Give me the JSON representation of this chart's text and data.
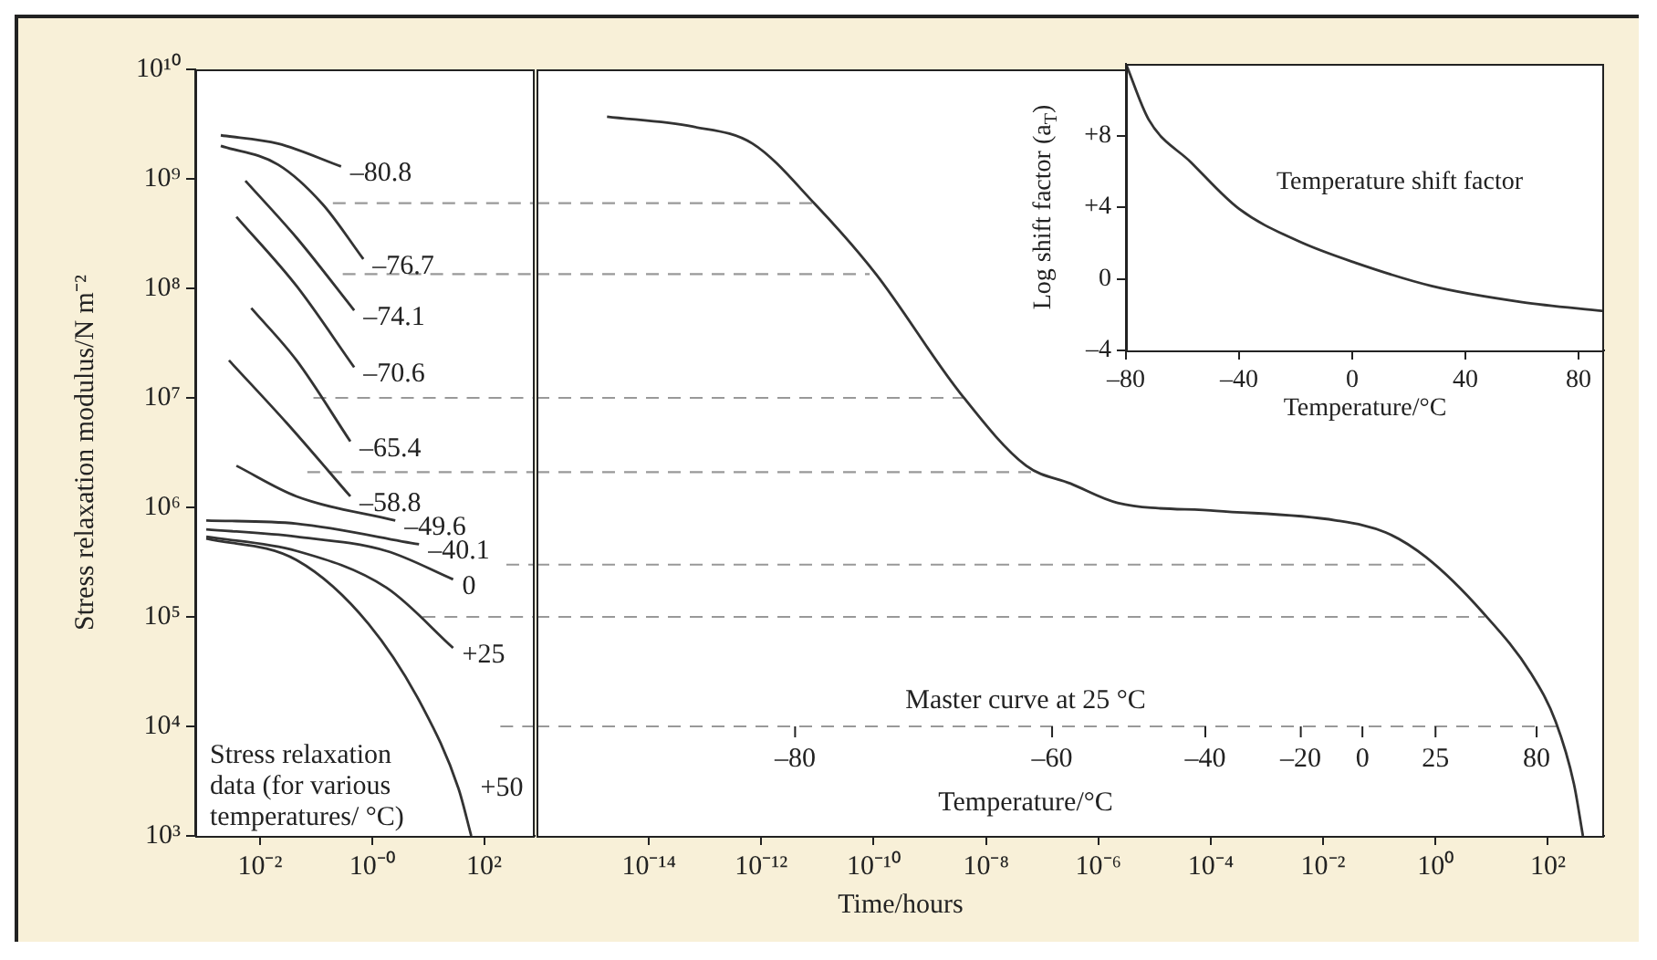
{
  "chart_data": [
    {
      "type": "line",
      "ylabel": "Stress relaxation modulus/N m⁻²",
      "log": "xy",
      "marker": "none",
      "xlim": [
        0.0007,
        800
      ],
      "ylim": [
        1000,
        10000000000
      ],
      "xticks": [
        {
          "value": 0.01,
          "label": "10⁻²"
        },
        {
          "value": 1,
          "label": "10⁻⁰"
        },
        {
          "value": 100,
          "label": "10²"
        }
      ],
      "yticks": [
        {
          "value": 1000,
          "label": "10³"
        },
        {
          "value": 10000,
          "label": "10⁴"
        },
        {
          "value": 100000,
          "label": "10⁵"
        },
        {
          "value": 1000000,
          "label": "10⁶"
        },
        {
          "value": 10000000,
          "label": "10⁷"
        },
        {
          "value": 100000000,
          "label": "10⁸"
        },
        {
          "value": 1000000000,
          "label": "10⁹"
        },
        {
          "value": 10000000000,
          "label": "10¹⁰"
        }
      ],
      "annotations": [
        "Stress relaxation data (for various temperatures/ °C)"
      ],
      "series": [
        {
          "name": "–80.8",
          "color": "#333333",
          "x": [
            0.002,
            0.021,
            0.28
          ],
          "values": [
            2500000000,
            2100000000,
            1300000000
          ]
        },
        {
          "name": "–76.7",
          "color": "#333333",
          "x": [
            0.002,
            0.021,
            0.13,
            0.7
          ],
          "values": [
            2000000000,
            1350000000,
            590000000,
            185000000
          ]
        },
        {
          "name": "–74.1",
          "color": "#333333",
          "x": [
            0.0055,
            0.045,
            0.48
          ],
          "values": [
            960000000,
            290000000,
            63000000
          ]
        },
        {
          "name": "–70.6",
          "color": "#333333",
          "x": [
            0.0038,
            0.045,
            0.48
          ],
          "values": [
            450000000,
            105000000,
            19000000
          ]
        },
        {
          "name": "–65.4",
          "color": "#333333",
          "x": [
            0.007,
            0.045,
            0.41
          ],
          "values": [
            66000000,
            22000000,
            4000000
          ]
        },
        {
          "name": "–58.8",
          "color": "#333333",
          "x": [
            0.0028,
            0.03,
            0.41
          ],
          "values": [
            22000000,
            5900000,
            1260000
          ]
        },
        {
          "name": "–49.6",
          "color": "#333333",
          "x": [
            0.0038,
            0.045,
            2.6
          ],
          "values": [
            2400000,
            1260000,
            760000
          ]
        },
        {
          "name": "–40.1",
          "color": "#333333",
          "x": [
            0.0011,
            0.045,
            6.9
          ],
          "values": [
            760000,
            710000,
            460000
          ]
        },
        {
          "name": "0",
          "color": "#333333",
          "x": [
            0.0011,
            0.045,
            1.8,
            28
          ],
          "values": [
            630000,
            540000,
            400000,
            220000
          ]
        },
        {
          "name": "+25",
          "color": "#333333",
          "x": [
            0.0011,
            0.045,
            1.8,
            28
          ],
          "values": [
            540000,
            400000,
            185000,
            52000
          ]
        },
        {
          "name": "+50",
          "color": "#333333",
          "x": [
            0.0011,
            0.045,
            0.87,
            8,
            35,
            59
          ],
          "values": [
            520000,
            330000,
            86000,
            15000,
            2700,
            1000
          ]
        },
        {
          "color": "#999999",
          "line_style": "dashed",
          "x": [
            0.2,
            800
          ],
          "values": [
            600000000,
            600000000
          ]
        },
        {
          "color": "#999999",
          "line_style": "dashed",
          "x": [
            0.3,
            800
          ],
          "values": [
            135000000,
            135000000
          ]
        },
        {
          "color": "#999999",
          "line_style": "dashed",
          "x": [
            0.09,
            800
          ],
          "values": [
            10000000,
            10000000
          ]
        },
        {
          "color": "#999999",
          "line_style": "dashed",
          "x": [
            0.07,
            800
          ],
          "values": [
            2100000,
            2100000
          ]
        },
        {
          "color": "#999999",
          "line_style": "dashed",
          "x": [
            250,
            800
          ],
          "values": [
            300000,
            300000
          ]
        },
        {
          "color": "#999999",
          "line_style": "dashed",
          "x": [
            8,
            800
          ],
          "values": [
            100000,
            100000
          ]
        },
        {
          "color": "#999999",
          "line_style": "dashed",
          "x": [
            195,
            800
          ],
          "values": [
            10000,
            10000
          ]
        }
      ]
    },
    {
      "type": "line",
      "xlabel": "Time/hours",
      "log": "xy",
      "marker": "none",
      "tick_labels": "x",
      "xlim": [
        1e-16,
        1000
      ],
      "ylim": [
        1000,
        10000000000
      ],
      "xticks": [
        {
          "value": 1e-14,
          "label": "10⁻¹⁴"
        },
        {
          "value": 1e-12,
          "label": "10⁻¹²"
        },
        {
          "value": 1e-10,
          "label": "10⁻¹⁰"
        },
        {
          "value": 1e-08,
          "label": "10⁻⁸"
        },
        {
          "value": 1e-06,
          "label": "10⁻⁶"
        },
        {
          "value": 0.0001,
          "label": "10⁻⁴"
        },
        {
          "value": 0.01,
          "label": "10⁻²"
        },
        {
          "value": 1,
          "label": "10⁰"
        },
        {
          "value": 100,
          "label": "10²"
        }
      ],
      "annotations": [
        "Master curve at 25 °C",
        "Temperature/°C",
        {
          "text": "–80",
          "x": 4e-12,
          "y": 10000
        },
        {
          "text": "–60",
          "x": 1.5e-07,
          "y": 10000
        },
        {
          "text": "–40",
          "x": 8e-05,
          "y": 10000
        },
        {
          "text": "–20",
          "x": 0.004,
          "y": 10000
        },
        {
          "text": "0",
          "x": 0.05,
          "y": 10000
        },
        {
          "text": "25",
          "x": 1,
          "y": 10000
        },
        {
          "text": "80",
          "x": 63,
          "y": 10000
        }
      ],
      "series": [
        {
          "color": "#333333",
          "x": [
            1.8e-15,
            6e-14,
            7e-13,
            9e-12,
            1.1e-10,
            3.5e-09,
            5.2e-08,
            3.2e-07,
            2.2e-06,
            0.000126,
            0.017,
            0.13,
            0.68,
            6.9,
            51,
            138,
            290,
            420
          ],
          "values": [
            3700000000,
            3000000000,
            2100000000,
            590000000,
            135000000,
            11000000,
            2400000,
            1650000,
            1100000,
            930000,
            760000,
            590000,
            350000,
            110000,
            30000,
            11000,
            3000,
            1000
          ]
        },
        {
          "color": "#999999",
          "line_style": "dashed",
          "x": [
            1e-16,
            8e-12
          ],
          "values": [
            600000000,
            600000000
          ]
        },
        {
          "color": "#999999",
          "line_style": "dashed",
          "x": [
            1e-16,
            8.5e-11
          ],
          "values": [
            135000000,
            135000000
          ]
        },
        {
          "color": "#999999",
          "line_style": "dashed",
          "x": [
            1e-16,
            4e-09
          ],
          "values": [
            10000000,
            10000000
          ]
        },
        {
          "color": "#999999",
          "line_style": "dashed",
          "x": [
            1e-16,
            7e-08
          ],
          "values": [
            2100000,
            2100000
          ]
        },
        {
          "color": "#999999",
          "line_style": "dashed",
          "x": [
            1e-16,
            0.9
          ],
          "values": [
            300000,
            300000
          ]
        },
        {
          "color": "#999999",
          "line_style": "dashed",
          "x": [
            1e-16,
            7.5
          ],
          "values": [
            100000,
            100000
          ]
        },
        {
          "color": "#999999",
          "line_style": "dashed",
          "x": [
            1e-16,
            145
          ],
          "values": [
            10000,
            10000
          ]
        }
      ]
    },
    {
      "type": "line",
      "xlabel": "Temperature/°C",
      "ylabel": "Log shift factor (a$_{T}$)",
      "marker": "none",
      "xlim": [
        -80,
        89
      ],
      "ylim": [
        -4,
        12
      ],
      "xticks": [
        {
          "value": -80,
          "label": "–80"
        },
        {
          "value": -40,
          "label": "–40"
        },
        0,
        40,
        80
      ],
      "yticks": [
        {
          "value": -4,
          "label": "–4"
        },
        0,
        {
          "value": 4,
          "label": "+4"
        },
        {
          "value": 8,
          "label": "+8"
        }
      ],
      "annotations": [
        "Temperature shift factor"
      ],
      "series": [
        {
          "color": "#333333",
          "x": [
            -80,
            -72,
            -57,
            -40,
            -19,
            1,
            28,
            60,
            89
          ],
          "values": [
            12,
            8.9,
            6.5,
            3.9,
            2.1,
            0.9,
            -0.4,
            -1.3,
            -1.8
          ]
        }
      ]
    }
  ]
}
